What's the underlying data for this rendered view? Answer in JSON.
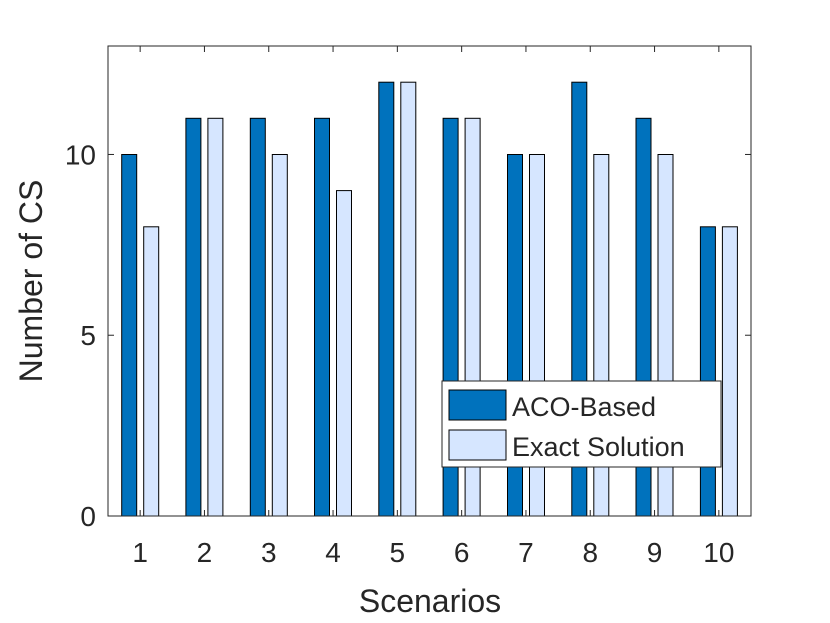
{
  "chart_data": {
    "type": "bar",
    "title": "",
    "xlabel": "Scenarios",
    "ylabel": "Number of CS",
    "categories": [
      "1",
      "2",
      "3",
      "4",
      "5",
      "6",
      "7",
      "8",
      "9",
      "10"
    ],
    "series": [
      {
        "name": "ACO-Based",
        "color": "#0072BD",
        "values": [
          10,
          11,
          11,
          11,
          12,
          11,
          10,
          12,
          11,
          8
        ]
      },
      {
        "name": "Exact Solution",
        "color": "#D6E6FF",
        "values": [
          8,
          11,
          10,
          9,
          12,
          11,
          10,
          10,
          10,
          8
        ]
      }
    ],
    "ylim": [
      0,
      13
    ],
    "yticks": [
      0,
      5,
      10
    ],
    "yticklabels": [
      "0",
      "5",
      "10"
    ],
    "grid": false,
    "legend_position": "bottom-right"
  }
}
